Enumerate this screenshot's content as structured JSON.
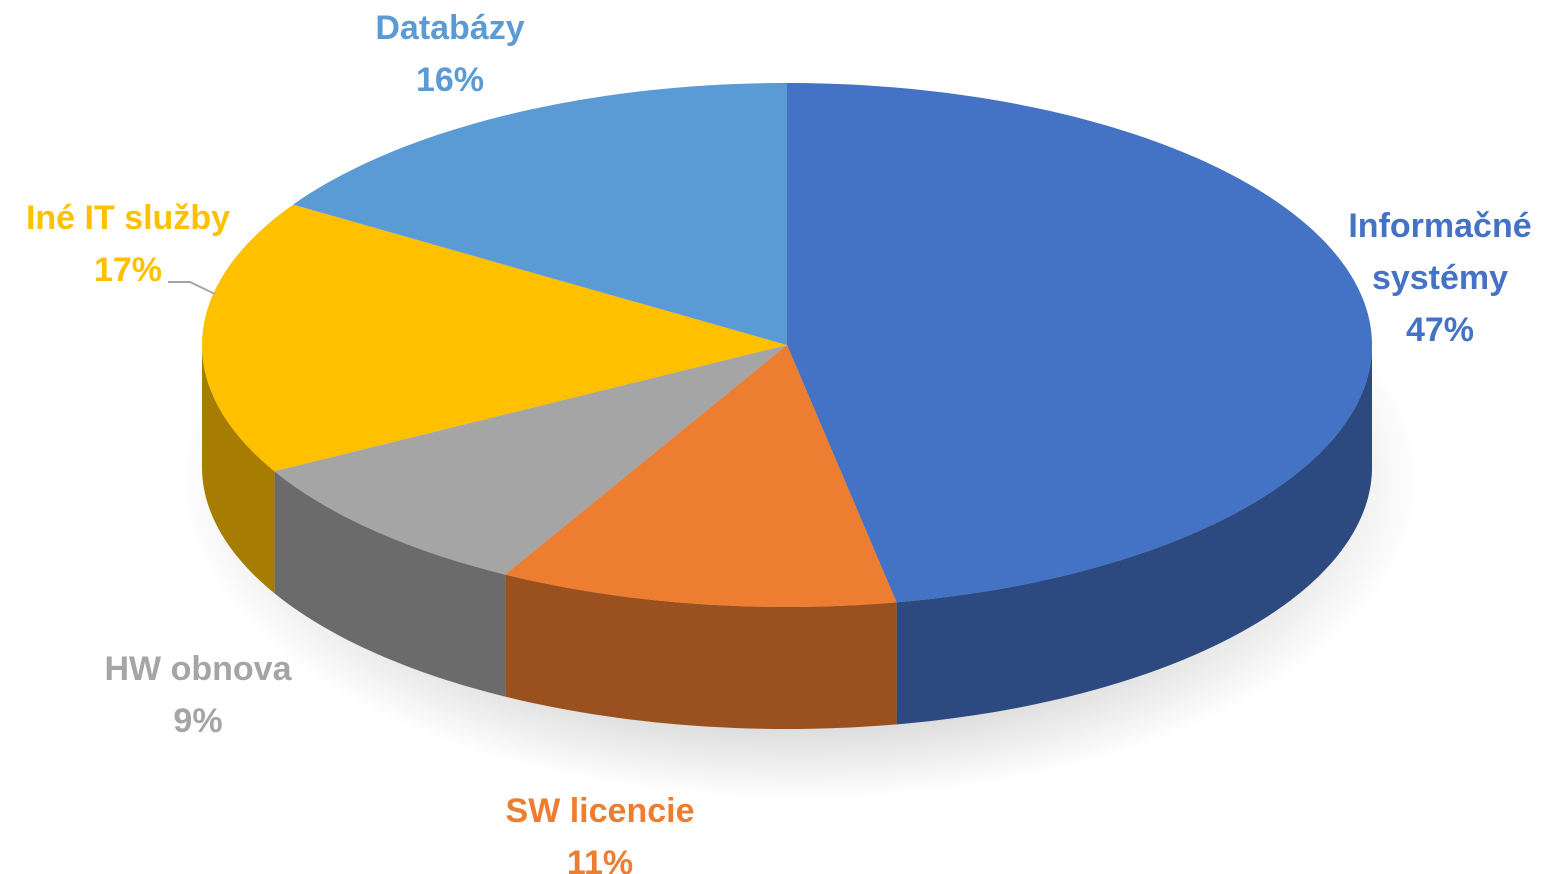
{
  "chart_data": {
    "type": "pie",
    "categories": [
      "Informačné systémy",
      "SW licencie",
      "HW obnova",
      "Iné IT služby",
      "Databázy"
    ],
    "values": [
      47,
      11,
      9,
      17,
      16
    ],
    "value_labels": [
      "47%",
      "11%",
      "9%",
      "17%",
      "16%"
    ],
    "colors": [
      "#4472c4",
      "#ed7d31",
      "#a5a5a5",
      "#ffc000",
      "#5b9bd5"
    ]
  }
}
